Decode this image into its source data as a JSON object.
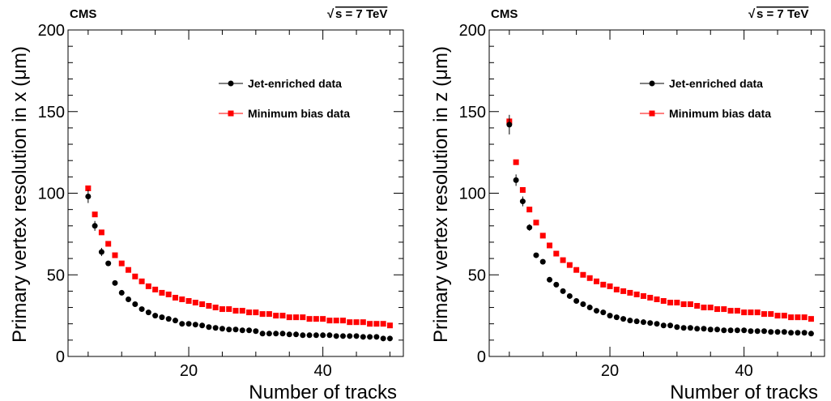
{
  "header": {
    "experiment": "CMS",
    "sqrt_symbol": "√",
    "energy_label": "s = 7 TeV"
  },
  "colors": {
    "jet_enriched": "#000000",
    "minimum_bias": "#ff0000",
    "axes": "#000000",
    "background": "#ffffff"
  },
  "chart_data": [
    {
      "type": "scatter",
      "panel": "left",
      "xlabel": "Number of tracks",
      "ylabel": "Primary vertex resolution in x (μm)",
      "xlim": [
        2,
        52
      ],
      "ylim": [
        0,
        200
      ],
      "xticks": [
        20,
        40
      ],
      "yticks": [
        0,
        50,
        100,
        150,
        200
      ],
      "legend_position": "top-right",
      "grid": false,
      "series": [
        {
          "name": "Jet-enriched data",
          "marker": "circle",
          "color": "#000000",
          "x": [
            5,
            6,
            7,
            8,
            9,
            10,
            11,
            12,
            13,
            14,
            15,
            16,
            17,
            18,
            19,
            20,
            21,
            22,
            23,
            24,
            25,
            26,
            27,
            28,
            29,
            30,
            31,
            32,
            33,
            34,
            35,
            36,
            37,
            38,
            39,
            40,
            41,
            42,
            43,
            44,
            45,
            46,
            47,
            48,
            49,
            50
          ],
          "y": [
            98,
            80,
            64,
            57,
            45,
            39,
            35,
            32,
            29,
            27,
            25,
            24,
            23,
            22,
            20,
            20,
            19.5,
            19,
            18,
            17.5,
            17,
            16.5,
            16.5,
            16,
            16,
            15.5,
            14,
            14,
            14,
            14,
            13.5,
            13.5,
            13,
            13,
            13,
            13,
            13,
            12.5,
            12.5,
            12.5,
            12.5,
            12,
            12,
            12,
            11,
            11
          ],
          "yerr": [
            4,
            3,
            2.5,
            0,
            0,
            0,
            0,
            0,
            0,
            0,
            0,
            0,
            0,
            0,
            0,
            0,
            0,
            0,
            0,
            0,
            0,
            0,
            0,
            0,
            0,
            0,
            0,
            0,
            0,
            0,
            0,
            0,
            0,
            0,
            0,
            0,
            0,
            0,
            0,
            0,
            0,
            0,
            0,
            0,
            0,
            0
          ]
        },
        {
          "name": "Minimum bias data",
          "marker": "square",
          "color": "#ff0000",
          "x": [
            5,
            6,
            7,
            8,
            9,
            10,
            11,
            12,
            13,
            14,
            15,
            16,
            17,
            18,
            19,
            20,
            21,
            22,
            23,
            24,
            25,
            26,
            27,
            28,
            29,
            30,
            31,
            32,
            33,
            34,
            35,
            36,
            37,
            38,
            39,
            40,
            41,
            42,
            43,
            44,
            45,
            46,
            47,
            48,
            49,
            50
          ],
          "y": [
            103,
            87,
            76,
            69,
            62,
            57,
            53,
            49,
            46,
            43,
            41,
            39,
            38,
            36,
            35,
            34,
            33,
            32,
            31,
            30,
            29,
            29,
            28,
            28,
            27,
            27,
            26,
            26,
            25,
            25,
            24,
            24,
            24,
            23,
            23,
            23,
            22,
            22,
            22,
            21,
            21,
            21,
            20,
            20,
            20,
            19
          ]
        }
      ]
    },
    {
      "type": "scatter",
      "panel": "right",
      "xlabel": "Number of tracks",
      "ylabel": "Primary vertex resolution in z (μm)",
      "xlim": [
        2,
        52
      ],
      "ylim": [
        0,
        200
      ],
      "xticks": [
        20,
        40
      ],
      "yticks": [
        0,
        50,
        100,
        150,
        200
      ],
      "legend_position": "top-right",
      "grid": false,
      "series": [
        {
          "name": "Jet-enriched data",
          "marker": "circle",
          "color": "#000000",
          "x": [
            5,
            6,
            7,
            8,
            9,
            10,
            11,
            12,
            13,
            14,
            15,
            16,
            17,
            18,
            19,
            20,
            21,
            22,
            23,
            24,
            25,
            26,
            27,
            28,
            29,
            30,
            31,
            32,
            33,
            34,
            35,
            36,
            37,
            38,
            39,
            40,
            41,
            42,
            43,
            44,
            45,
            46,
            47,
            48,
            49,
            50
          ],
          "y": [
            142,
            108,
            95,
            79,
            62,
            58,
            47,
            44,
            40,
            37,
            34,
            32,
            30,
            28,
            27,
            25,
            24,
            23,
            22,
            21.5,
            21,
            20.5,
            20,
            19,
            19,
            18,
            17.5,
            17.5,
            17,
            17,
            16.5,
            16.5,
            16,
            16,
            16,
            16,
            15.5,
            15.5,
            15.5,
            15,
            15,
            15,
            14.5,
            14.5,
            14.5,
            14
          ],
          "yerr": [
            6,
            3.5,
            3,
            2,
            0,
            0,
            0,
            0,
            0,
            0,
            0,
            0,
            0,
            0,
            0,
            0,
            0,
            0,
            0,
            0,
            0,
            0,
            0,
            0,
            0,
            0,
            0,
            0,
            0,
            0,
            0,
            0,
            0,
            0,
            0,
            0,
            0,
            0,
            0,
            0,
            0,
            0,
            0,
            0,
            0,
            0
          ]
        },
        {
          "name": "Minimum bias data",
          "marker": "square",
          "color": "#ff0000",
          "x": [
            5,
            6,
            7,
            8,
            9,
            10,
            11,
            12,
            13,
            14,
            15,
            16,
            17,
            18,
            19,
            20,
            21,
            22,
            23,
            24,
            25,
            26,
            27,
            28,
            29,
            30,
            31,
            32,
            33,
            34,
            35,
            36,
            37,
            38,
            39,
            40,
            41,
            42,
            43,
            44,
            45,
            46,
            47,
            48,
            49,
            50
          ],
          "y": [
            144,
            119,
            102,
            90,
            82,
            74,
            68,
            63,
            59,
            56,
            53,
            50,
            48,
            46,
            44,
            43,
            41,
            40,
            39,
            38,
            37,
            36,
            35,
            34,
            33,
            33,
            32,
            32,
            31,
            30,
            30,
            29,
            29,
            28,
            28,
            27,
            27,
            27,
            26,
            26,
            25,
            25,
            24,
            24,
            24,
            23
          ]
        }
      ]
    }
  ]
}
